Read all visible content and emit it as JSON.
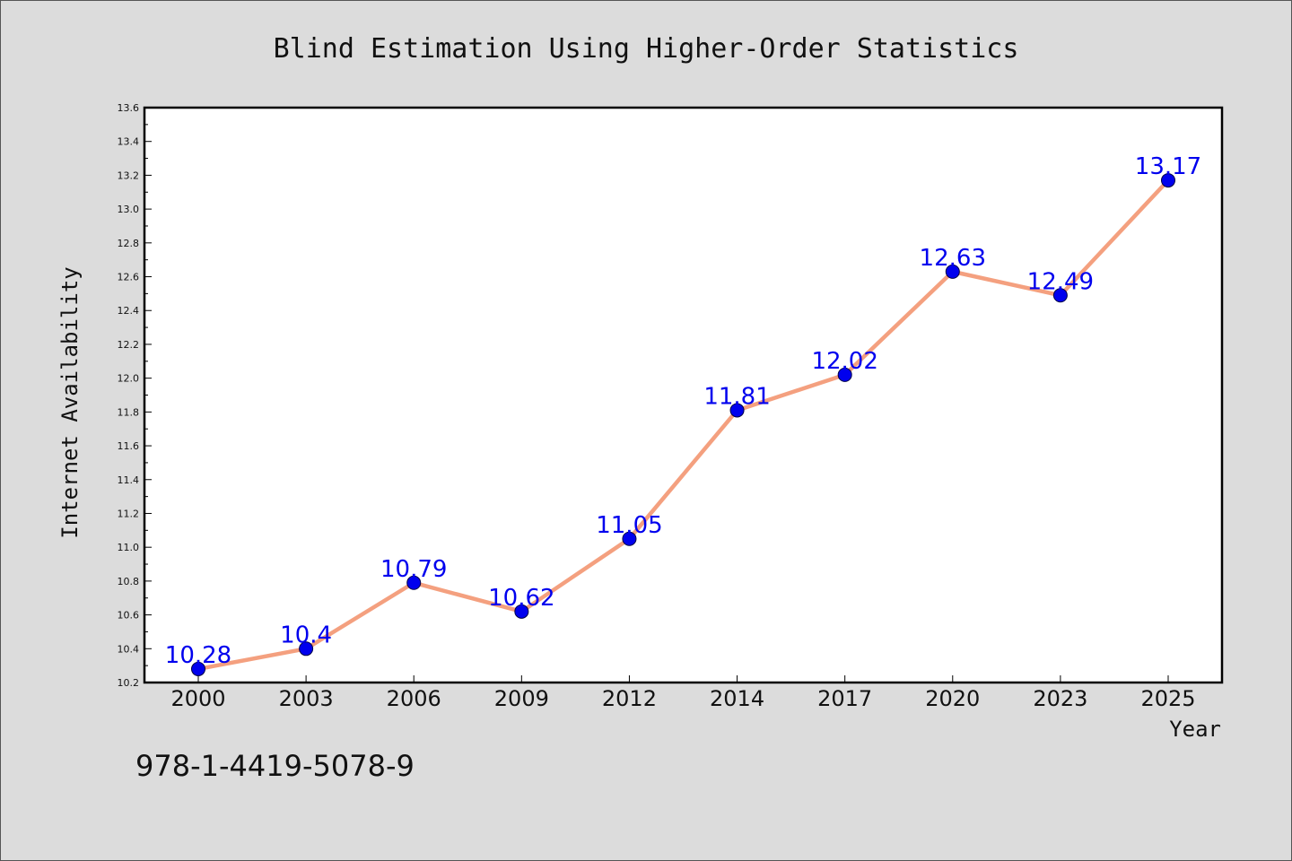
{
  "chart_data": {
    "type": "line",
    "title": "Blind Estimation Using Higher-Order Statistics",
    "xlabel": "Year",
    "ylabel": "Internet Availability",
    "categories": [
      "2000",
      "2003",
      "2006",
      "2009",
      "2012",
      "2014",
      "2017",
      "2020",
      "2023",
      "2025"
    ],
    "series": [
      {
        "values": [
          10.28,
          10.4,
          10.79,
          10.62,
          11.05,
          11.81,
          12.02,
          12.63,
          12.49,
          13.17
        ],
        "labels": [
          "10.28",
          "10.4",
          "10.79",
          "10.62",
          "11.05",
          "11.81",
          "12.02",
          "12.63",
          "12.49",
          "13.17"
        ],
        "line_color": "#f4a07f",
        "marker_color": "#0000ee"
      }
    ],
    "ylim": [
      10.2,
      13.6
    ],
    "yticks": [
      "10.2",
      "10.4",
      "10.6",
      "10.8",
      "11.0",
      "11.2",
      "11.4",
      "11.6",
      "11.8",
      "12.0",
      "12.2",
      "12.4",
      "12.6",
      "12.8",
      "13.0",
      "13.2",
      "13.4",
      "13.6"
    ],
    "grid": false,
    "legend": "none",
    "label_color": "#0000ee"
  },
  "footer": {
    "isbn": "978-1-4419-5078-9"
  }
}
